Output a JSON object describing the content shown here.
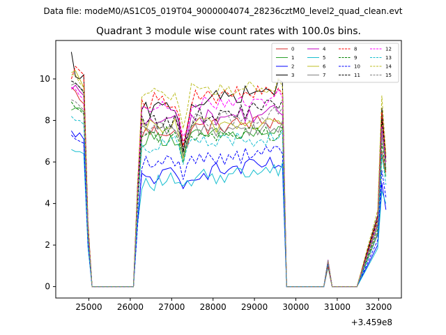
{
  "chart_data": {
    "type": "line",
    "suptitle": "Data file: modeM0/AS1C05_019T04_9000004074_28236cztM0_level2_quad_clean.evt",
    "title": "Quadrant 3 module wise count rates with 100.0s bins.",
    "xlabel": "",
    "ylabel": "",
    "x_offset_label": "+3.459e8",
    "xlim": [
      24200,
      32550
    ],
    "ylim": [
      -0.55,
      11.85
    ],
    "xticks": [
      25000,
      26000,
      27000,
      28000,
      29000,
      30000,
      31000,
      32000
    ],
    "yticks": [
      0,
      2,
      4,
      6,
      8,
      10
    ],
    "legend_position": "top-right",
    "grid": false,
    "segments": [
      {
        "x_start": 24577,
        "count": 6
      },
      {
        "x_start": 25077,
        "count": 11
      },
      {
        "x_start": 26177,
        "count": 36
      },
      {
        "x_start": 29777,
        "count": 10
      },
      {
        "x_start": 30777,
        "count": 1
      },
      {
        "x_start": 30877,
        "count": 7
      },
      {
        "x_start": 31977,
        "count": 3
      }
    ],
    "active_x_range": [
      26177,
      29677
    ],
    "series": [
      {
        "name": "0",
        "color": "#d62728",
        "dash": "solid",
        "start": [
          9.6,
          9.4,
          9.0,
          8.8
        ],
        "plateau": 7.4,
        "dip": 6.5,
        "plateau_end": 8.0,
        "flare": 6.5,
        "final": 5.5
      },
      {
        "name": "1",
        "color": "#2ca02c",
        "dash": "solid",
        "start": [
          8.5,
          8.6,
          8.6,
          8.4
        ],
        "plateau": 7.1,
        "dip": 6.2,
        "plateau_end": 7.4,
        "flare": 6.3,
        "final": 5.3
      },
      {
        "name": "2",
        "color": "#0000ff",
        "dash": "solid",
        "start": [
          7.5,
          7.2,
          7.4,
          7.1
        ],
        "plateau": 5.2,
        "dip": 4.6,
        "plateau_end": 5.9,
        "flare": 5.0,
        "final": 3.7
      },
      {
        "name": "3",
        "color": "#000000",
        "dash": "solid",
        "start": [
          11.3,
          10.1,
          10.0,
          10.2
        ],
        "plateau": 8.4,
        "dip": 6.8,
        "plateau_end": 9.6,
        "flare": 8.6,
        "final": 6.0
      },
      {
        "name": "4",
        "color": "#c000c0",
        "dash": "solid",
        "start": [
          9.5,
          9.7,
          9.4,
          9.2
        ],
        "plateau": 7.9,
        "dip": 7.0,
        "plateau_end": 8.4,
        "flare": 7.5,
        "final": 6.0
      },
      {
        "name": "5",
        "color": "#17becf",
        "dash": "solid",
        "start": [
          6.6,
          6.5,
          6.5,
          6.4
        ],
        "plateau": 4.9,
        "dip": 4.5,
        "plateau_end": 5.7,
        "flare": 4.6,
        "final": 4.0
      },
      {
        "name": "6",
        "color": "#bcbd22",
        "dash": "solid",
        "start": [
          10.3,
          10.4,
          10.0,
          9.6
        ],
        "plateau": 7.7,
        "dip": 6.3,
        "plateau_end": 7.9,
        "flare": 8.0,
        "final": 6.0
      },
      {
        "name": "7",
        "color": "#808080",
        "dash": "solid",
        "start": [
          9.7,
          9.8,
          9.6,
          9.3
        ],
        "plateau": 7.5,
        "dip": 6.4,
        "plateau_end": 7.7,
        "flare": 7.3,
        "final": 5.7
      },
      {
        "name": "8",
        "color": "#ff0000",
        "dash": "dashed",
        "start": [
          10.0,
          10.6,
          10.4,
          10.2
        ],
        "plateau": 8.9,
        "dip": 7.0,
        "plateau_end": 9.4,
        "flare": 8.4,
        "final": 6.2
      },
      {
        "name": "9",
        "color": "#008000",
        "dash": "dashed",
        "start": [
          8.9,
          8.6,
          8.5,
          8.3
        ],
        "plateau": 7.3,
        "dip": 6.2,
        "plateau_end": 7.4,
        "flare": 6.9,
        "final": 5.6
      },
      {
        "name": "10",
        "color": "#0000ff",
        "dash": "dashed",
        "start": [
          7.3,
          7.1,
          7.0,
          6.9
        ],
        "plateau": 5.9,
        "dip": 5.5,
        "plateau_end": 6.5,
        "flare": 5.6,
        "final": 4.3
      },
      {
        "name": "11",
        "color": "#000000",
        "dash": "dashed",
        "start": [
          9.9,
          9.8,
          9.6,
          9.4
        ],
        "plateau": 7.8,
        "dip": 6.6,
        "plateau_end": 8.7,
        "flare": 8.1,
        "final": 6.1
      },
      {
        "name": "12",
        "color": "#ff00ff",
        "dash": "dashed",
        "start": [
          9.6,
          9.5,
          9.2,
          9.0
        ],
        "plateau": 8.4,
        "dip": 6.9,
        "plateau_end": 9.2,
        "flare": 7.7,
        "final": 5.9
      },
      {
        "name": "13",
        "color": "#17becf",
        "dash": "dashed",
        "start": [
          8.2,
          8.0,
          8.0,
          7.8
        ],
        "plateau": 6.8,
        "dip": 6.0,
        "plateau_end": 7.2,
        "flare": 6.4,
        "final": 4.9
      },
      {
        "name": "14",
        "color": "#bcbd22",
        "dash": "dashed",
        "start": [
          10.2,
          10.2,
          9.8,
          9.6
        ],
        "plateau": 9.2,
        "dip": 7.4,
        "plateau_end": 9.7,
        "flare": 9.2,
        "final": 6.4
      },
      {
        "name": "15",
        "color": "#808080",
        "dash": "dashed",
        "start": [
          9.0,
          8.9,
          8.7,
          8.5
        ],
        "plateau": 7.7,
        "dip": 6.5,
        "plateau_end": 8.3,
        "flare": 7.6,
        "final": 5.8
      }
    ]
  }
}
